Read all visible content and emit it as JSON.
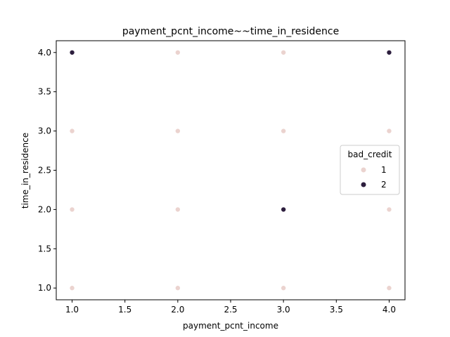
{
  "chart_data": {
    "type": "scatter",
    "title": "payment_pcnt_income~~time_in_residence",
    "xlabel": "payment_pcnt_income",
    "ylabel": "time_in_residence",
    "xlim": [
      0.85,
      4.15
    ],
    "ylim": [
      0.85,
      4.15
    ],
    "xticks": [
      "1.0",
      "1.5",
      "2.0",
      "2.5",
      "3.0",
      "3.5",
      "4.0"
    ],
    "yticks": [
      "1.0",
      "1.5",
      "2.0",
      "2.5",
      "3.0",
      "3.5",
      "4.0"
    ],
    "grid": false,
    "legend": {
      "title": "bad_credit",
      "placement": "center-right",
      "entries": [
        {
          "label": "1",
          "color": "#ebd3cf"
        },
        {
          "label": "2",
          "color": "#2d1e3e"
        }
      ]
    },
    "series": [
      {
        "name": "1",
        "color": "#ebd3cf",
        "points": [
          [
            1,
            1
          ],
          [
            1,
            2
          ],
          [
            1,
            3
          ],
          [
            1,
            4
          ],
          [
            2,
            1
          ],
          [
            2,
            2
          ],
          [
            2,
            3
          ],
          [
            2,
            4
          ],
          [
            3,
            1
          ],
          [
            3,
            2
          ],
          [
            3,
            3
          ],
          [
            3,
            4
          ],
          [
            4,
            1
          ],
          [
            4,
            2
          ],
          [
            4,
            3
          ],
          [
            4,
            4
          ]
        ]
      },
      {
        "name": "2",
        "color": "#2d1e3e",
        "points": [
          [
            1,
            4
          ],
          [
            3,
            2
          ],
          [
            4,
            4
          ]
        ]
      }
    ]
  }
}
